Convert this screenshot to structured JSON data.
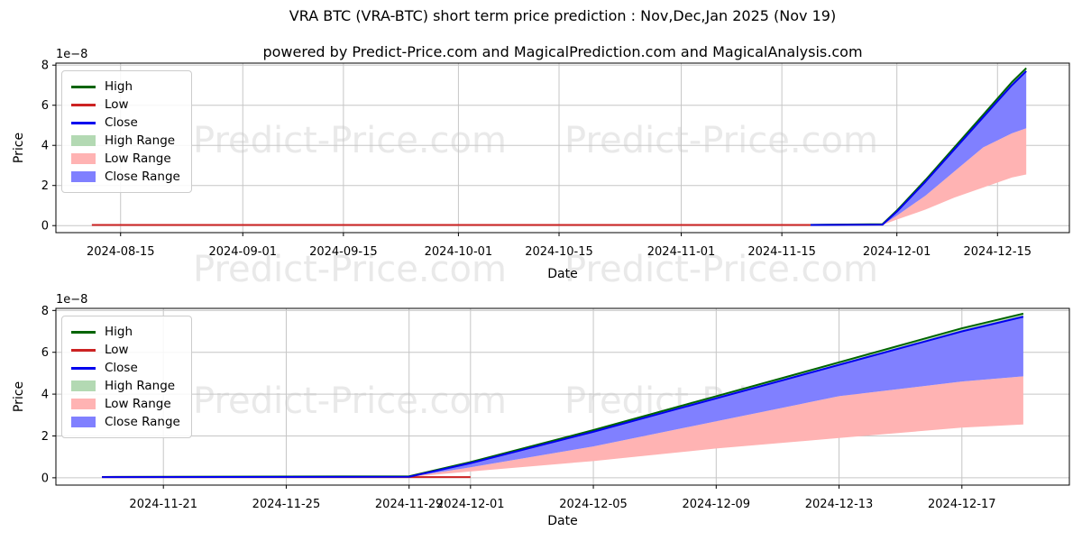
{
  "figure": {
    "title": "VRA BTC (VRA-BTC) short term price prediction : Nov,Dec,Jan 2025 (Nov 19)",
    "subtitle": "powered by Predict-Price.com and MagicalPrediction.com and MagicalAnalysis.com",
    "watermark": "Predict-Price.com"
  },
  "colors": {
    "high": "#006400",
    "low": "#cc2222",
    "close": "#0000ee",
    "high_range": "#b3d9b3",
    "low_range": "#ffb3b3",
    "close_range": "#8080ff",
    "grid": "#c6c6c6",
    "watermark": "#e9e9e9",
    "axis": "#000000"
  },
  "legend": {
    "items": [
      {
        "label": "High",
        "type": "line",
        "color": "high"
      },
      {
        "label": "Low",
        "type": "line",
        "color": "low"
      },
      {
        "label": "Close",
        "type": "line",
        "color": "close"
      },
      {
        "label": "High Range",
        "type": "patch",
        "color": "high_range"
      },
      {
        "label": "Low Range",
        "type": "patch",
        "color": "low_range"
      },
      {
        "label": "Close Range",
        "type": "patch",
        "color": "close_range"
      }
    ]
  },
  "chart_data": [
    {
      "type": "line",
      "name": "full-history-panel",
      "xlabel": "Date",
      "ylabel": "Price",
      "offset_label": "1e−8",
      "y_unit": "1e-8",
      "ylim": [
        -0.35,
        8.1
      ],
      "yticks": [
        0,
        2,
        4,
        6,
        8
      ],
      "xlim": [
        "2024-08-06",
        "2024-12-25"
      ],
      "xticks": [
        "2024-08-15",
        "2024-09-01",
        "2024-09-15",
        "2024-10-01",
        "2024-10-15",
        "2024-11-01",
        "2024-11-15",
        "2024-12-01",
        "2024-12-15"
      ],
      "grid": true,
      "legend_position": "upper-left",
      "series": [
        {
          "name": "High",
          "color": "high",
          "x": [
            "2024-11-19",
            "2024-11-29",
            "2024-12-01",
            "2024-12-05",
            "2024-12-09",
            "2024-12-13",
            "2024-12-17",
            "2024-12-19"
          ],
          "y": [
            0.04,
            0.07,
            0.75,
            2.28,
            3.9,
            5.52,
            7.15,
            7.85
          ]
        },
        {
          "name": "Low",
          "color": "low",
          "x": [
            "2024-08-11",
            "2024-11-19"
          ],
          "y": [
            0.03,
            0.03
          ]
        },
        {
          "name": "Close",
          "color": "close",
          "x": [
            "2024-11-19",
            "2024-11-29",
            "2024-12-01",
            "2024-12-05",
            "2024-12-09",
            "2024-12-13",
            "2024-12-17",
            "2024-12-19"
          ],
          "y": [
            0.03,
            0.05,
            0.7,
            2.2,
            3.8,
            5.4,
            7.0,
            7.7
          ]
        }
      ],
      "bands": [
        {
          "name": "Low Range",
          "color": "low_range",
          "x": [
            "2024-11-19",
            "2024-11-29",
            "2024-12-01",
            "2024-12-05",
            "2024-12-09",
            "2024-12-13",
            "2024-12-17",
            "2024-12-19"
          ],
          "upper": [
            0.03,
            0.04,
            0.5,
            1.5,
            2.7,
            3.9,
            4.6,
            4.85
          ],
          "lower": [
            0.03,
            0.04,
            0.3,
            0.8,
            1.4,
            1.9,
            2.4,
            2.55
          ]
        },
        {
          "name": "Close Range",
          "color": "close_range",
          "x": [
            "2024-11-19",
            "2024-11-29",
            "2024-12-01",
            "2024-12-05",
            "2024-12-09",
            "2024-12-13",
            "2024-12-17",
            "2024-12-19"
          ],
          "upper": [
            0.03,
            0.05,
            0.7,
            2.2,
            3.8,
            5.4,
            7.0,
            7.7
          ],
          "lower": [
            0.03,
            0.04,
            0.5,
            1.5,
            2.7,
            3.9,
            4.6,
            4.85
          ]
        },
        {
          "name": "High Range",
          "color": "high_range",
          "x": [
            "2024-11-19",
            "2024-11-29",
            "2024-12-01",
            "2024-12-05",
            "2024-12-09",
            "2024-12-13",
            "2024-12-17",
            "2024-12-19"
          ],
          "upper": [
            0.04,
            0.07,
            0.75,
            2.28,
            3.9,
            5.52,
            7.15,
            7.85
          ],
          "lower": [
            0.03,
            0.05,
            0.7,
            2.2,
            3.8,
            5.4,
            7.0,
            7.7
          ]
        }
      ]
    },
    {
      "type": "line",
      "name": "prediction-zoom-panel",
      "xlabel": "Date",
      "ylabel": "Price",
      "offset_label": "1e−8",
      "y_unit": "1e-8",
      "ylim": [
        -0.35,
        8.1
      ],
      "yticks": [
        0,
        2,
        4,
        6,
        8
      ],
      "xlim": [
        "2024-11-17T12:00:00Z",
        "2024-12-20T12:00:00Z"
      ],
      "xticks": [
        "2024-11-21",
        "2024-11-25",
        "2024-11-29",
        "2024-12-01",
        "2024-12-05",
        "2024-12-09",
        "2024-12-13",
        "2024-12-17"
      ],
      "grid": true,
      "legend_position": "upper-left",
      "series": [
        {
          "name": "High",
          "color": "high",
          "x": [
            "2024-11-19",
            "2024-11-29",
            "2024-12-01",
            "2024-12-05",
            "2024-12-09",
            "2024-12-13",
            "2024-12-17",
            "2024-12-19"
          ],
          "y": [
            0.04,
            0.07,
            0.75,
            2.28,
            3.9,
            5.52,
            7.15,
            7.85
          ]
        },
        {
          "name": "Low",
          "color": "low",
          "x": [
            "2024-11-19",
            "2024-12-01"
          ],
          "y": [
            0.03,
            0.03
          ]
        },
        {
          "name": "Close",
          "color": "close",
          "x": [
            "2024-11-19",
            "2024-11-29",
            "2024-12-01",
            "2024-12-05",
            "2024-12-09",
            "2024-12-13",
            "2024-12-17",
            "2024-12-19"
          ],
          "y": [
            0.03,
            0.05,
            0.7,
            2.2,
            3.8,
            5.4,
            7.0,
            7.7
          ]
        }
      ],
      "bands": [
        {
          "name": "Low Range",
          "color": "low_range",
          "x": [
            "2024-11-19",
            "2024-11-29",
            "2024-12-01",
            "2024-12-05",
            "2024-12-09",
            "2024-12-13",
            "2024-12-17",
            "2024-12-19"
          ],
          "upper": [
            0.03,
            0.04,
            0.5,
            1.5,
            2.7,
            3.9,
            4.6,
            4.85
          ],
          "lower": [
            0.03,
            0.04,
            0.3,
            0.8,
            1.4,
            1.9,
            2.4,
            2.55
          ]
        },
        {
          "name": "Close Range",
          "color": "close_range",
          "x": [
            "2024-11-19",
            "2024-11-29",
            "2024-12-01",
            "2024-12-05",
            "2024-12-09",
            "2024-12-13",
            "2024-12-17",
            "2024-12-19"
          ],
          "upper": [
            0.03,
            0.05,
            0.7,
            2.2,
            3.8,
            5.4,
            7.0,
            7.7
          ],
          "lower": [
            0.03,
            0.04,
            0.5,
            1.5,
            2.7,
            3.9,
            4.6,
            4.85
          ]
        },
        {
          "name": "High Range",
          "color": "high_range",
          "x": [
            "2024-11-19",
            "2024-11-29",
            "2024-12-01",
            "2024-12-05",
            "2024-12-09",
            "2024-12-13",
            "2024-12-17",
            "2024-12-19"
          ],
          "upper": [
            0.04,
            0.07,
            0.75,
            2.28,
            3.9,
            5.52,
            7.15,
            7.85
          ],
          "lower": [
            0.03,
            0.05,
            0.7,
            2.2,
            3.8,
            5.4,
            7.0,
            7.7
          ]
        }
      ]
    }
  ]
}
